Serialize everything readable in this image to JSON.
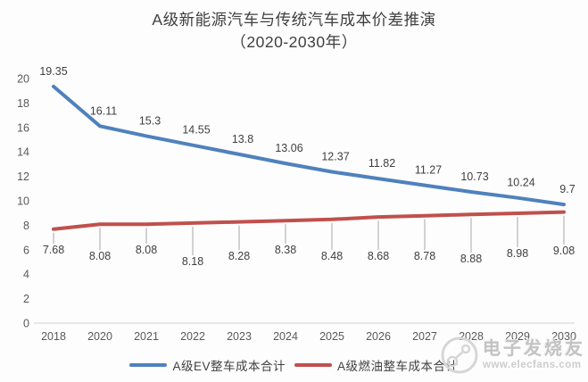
{
  "chart_data": {
    "type": "line",
    "title_line1": "A级新能源汽车与传统汽车成本价差推演",
    "title_line2": "（2020-2030年）",
    "categories": [
      "2018",
      "2020",
      "2021",
      "2022",
      "2023",
      "2024",
      "2025",
      "2026",
      "2027",
      "2028",
      "2029",
      "2030"
    ],
    "y_ticks": [
      0,
      2,
      4,
      6,
      8,
      10,
      12,
      14,
      16,
      18,
      20
    ],
    "ylim": [
      0,
      20
    ],
    "grid": false,
    "legend_position": "bottom",
    "series": [
      {
        "name": "A级EV整车成本合计",
        "color": "#4F81BD",
        "values": [
          19.35,
          16.11,
          15.3,
          14.55,
          13.8,
          13.06,
          12.37,
          11.82,
          11.27,
          10.73,
          10.24,
          9.7
        ],
        "labels": [
          "19.35",
          "16.11",
          "15.3",
          "14.55",
          "13.8",
          "13.06",
          "12.37",
          "11.82",
          "11.27",
          "10.73",
          "10.24",
          "9.7"
        ]
      },
      {
        "name": "A级燃油整车成本合计",
        "color": "#C0504D",
        "values": [
          7.68,
          8.08,
          8.08,
          8.18,
          8.28,
          8.38,
          8.48,
          8.68,
          8.78,
          8.88,
          8.98,
          9.08
        ],
        "labels": [
          "7.68",
          "8.08",
          "8.08",
          "8.18",
          "8.28",
          "8.38",
          "8.48",
          "8.68",
          "8.78",
          "8.88",
          "8.98",
          "9.08"
        ]
      }
    ],
    "colors": {
      "axis_line": "#d9d9d9",
      "tick_text": "#595959",
      "data_label": "#3f3f3f",
      "leader_line": "#a6a6a6"
    }
  },
  "watermark": {
    "brand": "电子发烧友",
    "url": "www.elecfans.com"
  }
}
